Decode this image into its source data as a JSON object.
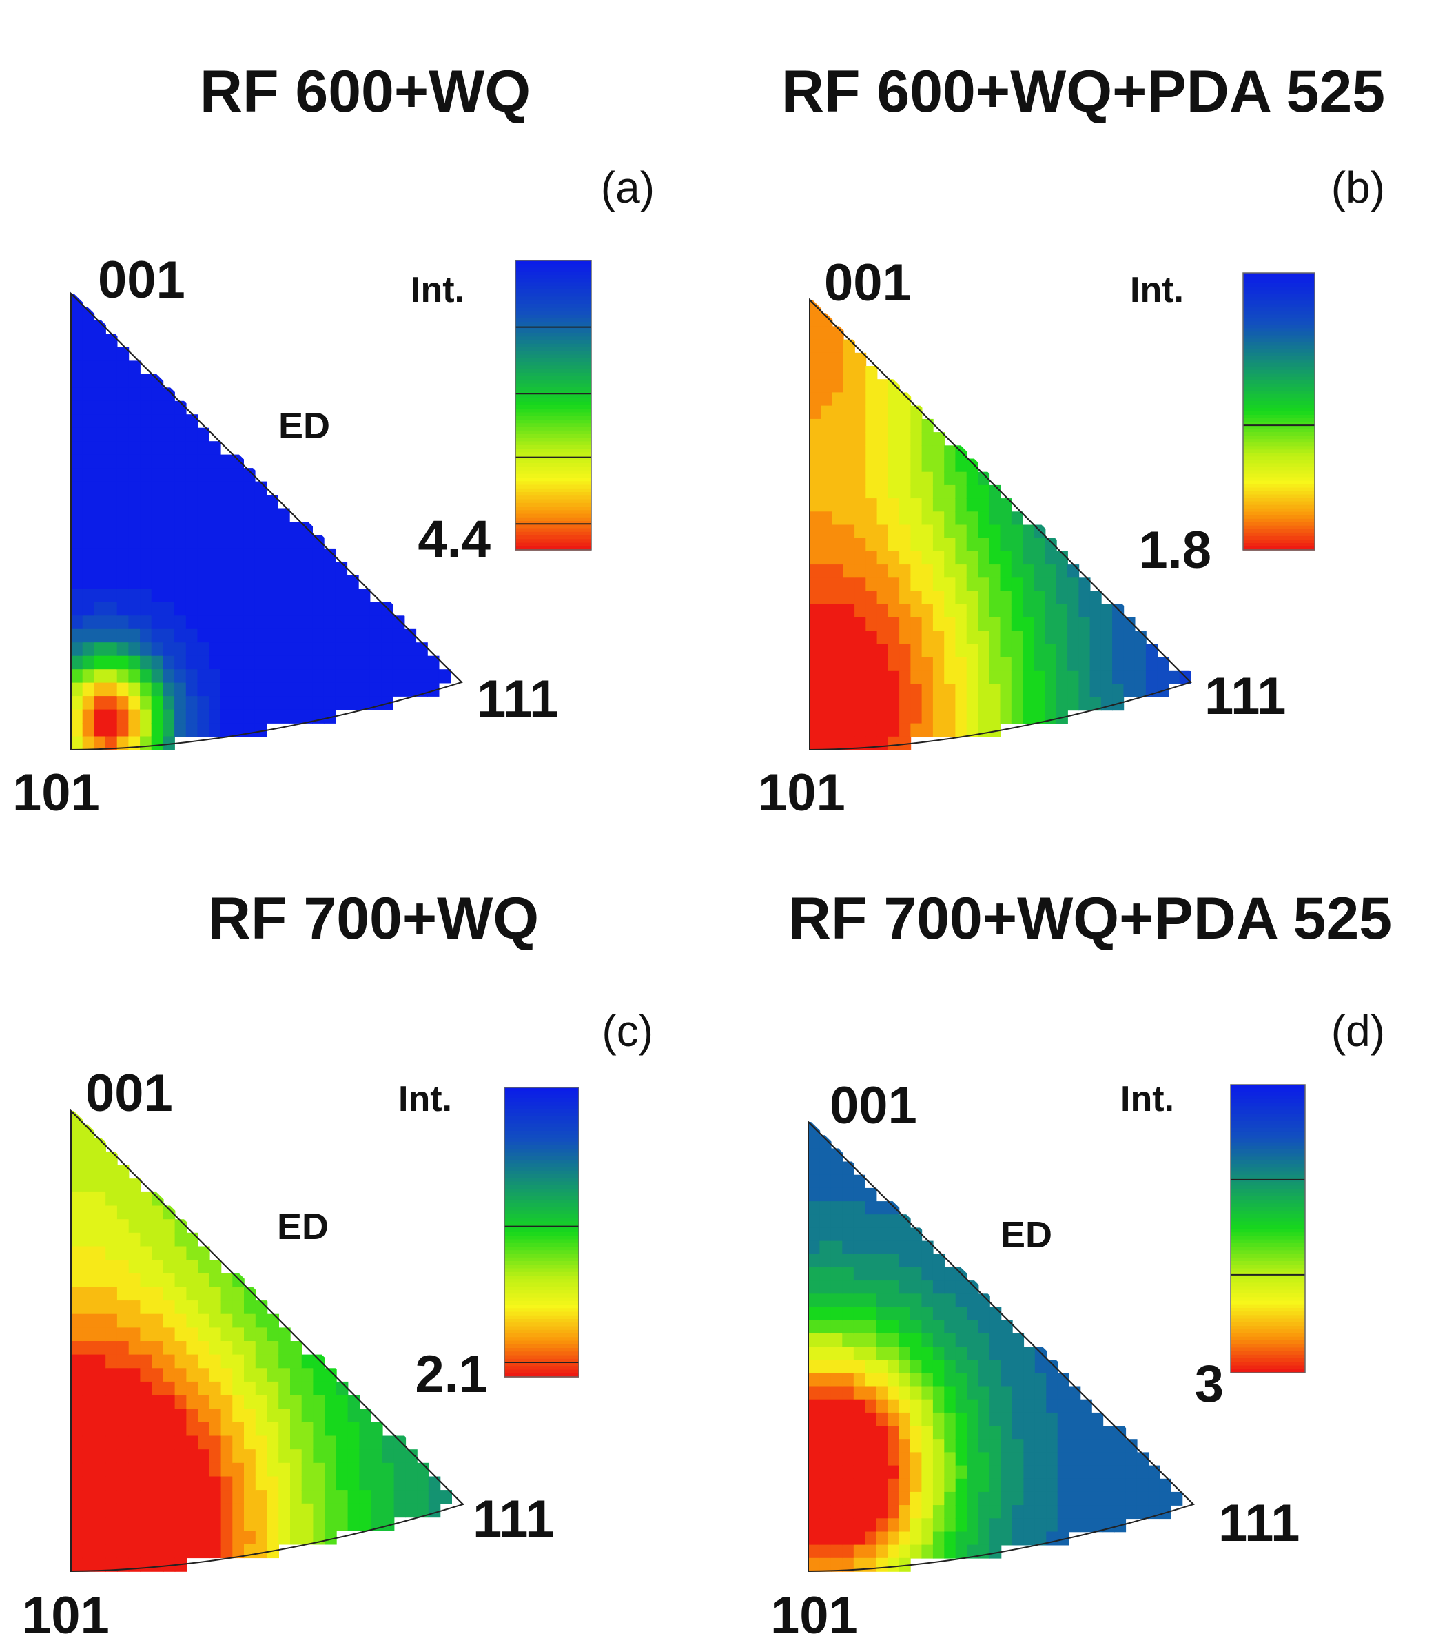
{
  "panels": [
    {
      "id": "a",
      "title": "RF 600+WQ",
      "label": "(a)",
      "pole_001": "001",
      "pole_101": "101",
      "pole_111": "111",
      "ed": "ED",
      "int_label": "Int.",
      "max_value": "4.4",
      "texture": {
        "w101": 1.0,
        "w001": 0.0,
        "w111": 0.0,
        "r101": 0.16,
        "r001": 0.3,
        "r111": 0.3,
        "focus": [
          0.09,
          0.06
        ],
        "bg": 0.0
      },
      "colorbar_lines": [
        0.23,
        0.46,
        0.68,
        0.91
      ]
    },
    {
      "id": "b",
      "title": "RF 600+WQ+PDA 525",
      "label": "(b)",
      "pole_001": "001",
      "pole_101": "101",
      "pole_111": "111",
      "ed": "",
      "int_label": "Int.",
      "max_value": "1.8",
      "texture": {
        "w101": 1.0,
        "w001": 0.72,
        "w111": 0.0,
        "r101": 0.6,
        "r001": 0.45,
        "r111": 0.3,
        "focus": [
          0.05,
          0.08
        ],
        "bg": 0.05
      },
      "colorbar_lines": [
        0.55
      ]
    },
    {
      "id": "c",
      "title": "RF 700+WQ",
      "label": "(c)",
      "pole_001": "001",
      "pole_101": "101",
      "pole_111": "111",
      "ed": "ED",
      "int_label": "Int.",
      "max_value": "2.1",
      "texture": {
        "w101": 1.0,
        "w001": 0.3,
        "w111": 0.0,
        "r101": 0.55,
        "r001": 0.45,
        "r111": 0.3,
        "focus": [
          0.05,
          0.08
        ],
        "bg": 0.28
      },
      "colorbar_lines": [
        0.48,
        0.95
      ]
    },
    {
      "id": "d",
      "title": "RF 700+WQ+PDA 525",
      "label": "(d)",
      "pole_001": "001",
      "pole_101": "101",
      "pole_111": "111",
      "ed": "ED",
      "int_label": "Int.",
      "max_value": "3",
      "texture": {
        "w101": 1.0,
        "w001": 0.0,
        "w111": 0.0,
        "r101": 0.32,
        "r001": 0.4,
        "r111": 0.3,
        "focus": [
          0.05,
          0.22
        ],
        "bg": 0.22
      },
      "colorbar_lines": [
        0.33,
        0.66
      ]
    }
  ],
  "colors": {
    "low": "#0b1de8",
    "mid": "#17d81c",
    "mid_high": "#f7f71a",
    "high": "#ee1a12"
  }
}
